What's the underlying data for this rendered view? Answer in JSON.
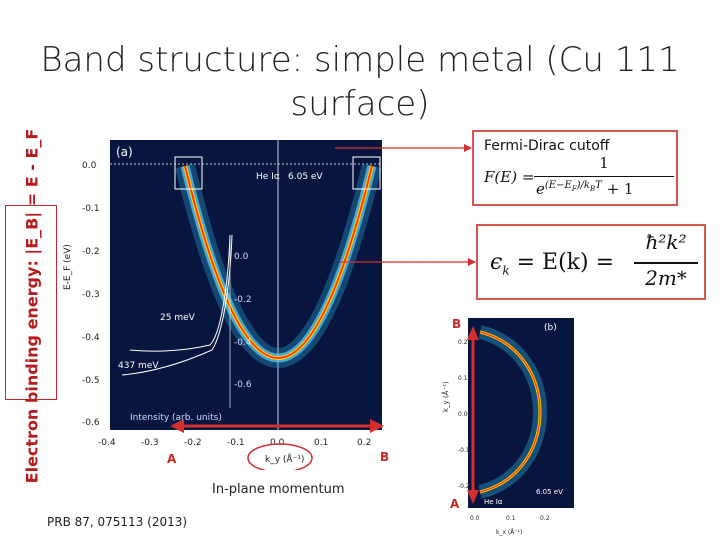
{
  "slide": {
    "title": "Band structure: simple metal (Cu 111 surface)",
    "citation": "PRB 87, 075113 (2013)",
    "xaxis_caption": "In-plane momentum",
    "energy_box": "Electron binding energy: |E_B| = E - E_F",
    "fermi_dirac": {
      "title": "Fermi-Dirac cutoff",
      "formula_lhs": "F(E) = ",
      "numerator": "1",
      "denominator_base": "e",
      "exponent": "(E−E",
      "exponent_tail": ")/k",
      "exponent_end": "T",
      "denominator_tail": " + 1"
    },
    "dispersion": {
      "lhs": "ϵ",
      "k_sub": "k",
      "eq": " = E(k) = ",
      "numerator": "ħ²k²",
      "denominator": "2m*"
    },
    "markers": {
      "a_left": "A",
      "b_right": "B",
      "b_top": "B",
      "a_bottom": "A"
    }
  },
  "figure_a": {
    "panel_label": "(a)",
    "source_label": "He Iα",
    "photon_energy": "6.05 eV",
    "ylabel": "E-E_F (eV)",
    "xlabel": "k_y (Å⁻¹)",
    "yticks": [
      "0.0",
      "-0.1",
      "-0.2",
      "-0.3",
      "-0.4",
      "-0.5",
      "-0.6"
    ],
    "xticks": [
      "-0.4",
      "-0.3",
      "-0.2",
      "-0.1",
      "0.0",
      "0.1",
      "0.2"
    ],
    "inset_ticks": [
      "0.0",
      "-0.2",
      "-0.4",
      "-0.6"
    ],
    "inset_xlabel": "Intensity (arb. units)",
    "width_label_1": "25 meV",
    "width_label_2": "437 meV"
  },
  "figure_b": {
    "panel_label": "(b)",
    "source_label": "He Iα",
    "photon_energy": "6.05 eV",
    "ylabel": "k_y (Å⁻¹)",
    "xlabel": "k_x (Å⁻¹)",
    "yticks": [
      "0.2",
      "0.1",
      "0.0",
      "-0.1",
      "-0.2"
    ],
    "xticks": [
      "0.0",
      "0.1",
      "0.2"
    ]
  },
  "colors": {
    "accent_red": "#d32f2f",
    "plot_bg": "#0a1a4a",
    "band_core": "#ff6a00"
  }
}
